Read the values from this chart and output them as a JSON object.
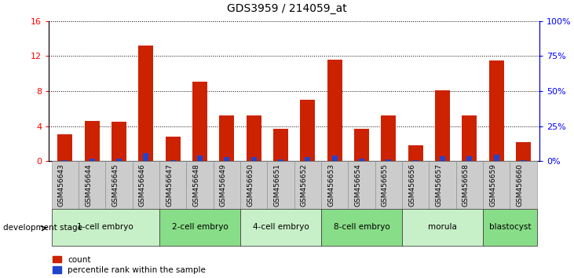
{
  "title": "GDS3959 / 214059_at",
  "samples": [
    "GSM456643",
    "GSM456644",
    "GSM456645",
    "GSM456646",
    "GSM456647",
    "GSM456648",
    "GSM456649",
    "GSM456650",
    "GSM456651",
    "GSM456652",
    "GSM456653",
    "GSM456654",
    "GSM456655",
    "GSM456656",
    "GSM456657",
    "GSM456658",
    "GSM456659",
    "GSM456660"
  ],
  "counts": [
    3.1,
    4.6,
    4.5,
    13.2,
    2.8,
    9.1,
    5.2,
    5.2,
    3.7,
    7.0,
    11.6,
    3.7,
    5.2,
    1.8,
    8.1,
    5.2,
    11.5,
    2.2
  ],
  "percentiles": [
    1.0,
    2.0,
    2.0,
    6.0,
    1.0,
    4.2,
    3.2,
    3.0,
    1.5,
    3.2,
    4.0,
    2.0,
    1.5,
    0.5,
    3.5,
    3.8,
    4.5,
    0.8
  ],
  "stages_order": [
    "1-cell embryo",
    "2-cell embryo",
    "4-cell embryo",
    "8-cell embryo",
    "morula",
    "blastocyst"
  ],
  "stages": {
    "1-cell embryo": [
      0,
      1,
      2,
      3
    ],
    "2-cell embryo": [
      4,
      5,
      6
    ],
    "4-cell embryo": [
      7,
      8,
      9
    ],
    "8-cell embryo": [
      10,
      11,
      12
    ],
    "morula": [
      13,
      14,
      15
    ],
    "blastocyst": [
      16,
      17
    ]
  },
  "stage_colors": [
    "#c8f0c8",
    "#88dd88",
    "#c8f0c8",
    "#88dd88",
    "#c8f0c8",
    "#88dd88"
  ],
  "bar_color": "#cc2200",
  "percentile_color": "#2244cc",
  "ylim_left": [
    0,
    16
  ],
  "ylim_right": [
    0,
    100
  ],
  "yticks_left": [
    0,
    4,
    8,
    12,
    16
  ],
  "yticks_right": [
    0,
    25,
    50,
    75,
    100
  ],
  "background_color": "#ffffff",
  "bar_width": 0.55,
  "percentile_bar_width": 0.2,
  "tick_box_color": "#cccccc",
  "tick_label_fontsize": 6.5
}
